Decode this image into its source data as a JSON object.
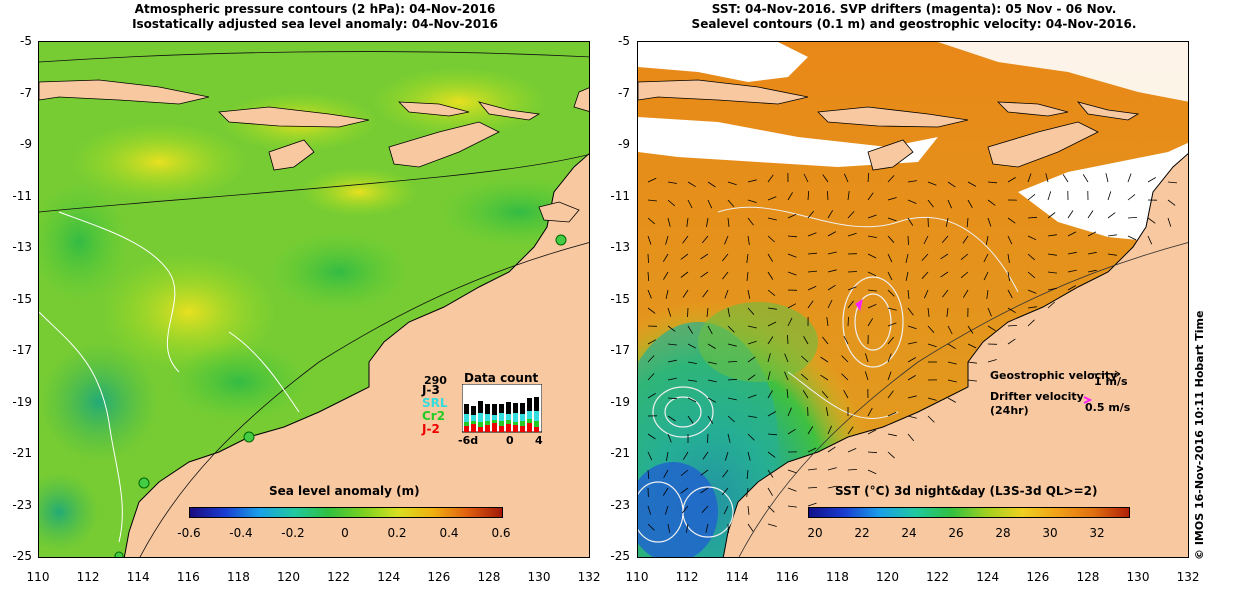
{
  "left_panel": {
    "title_line1": "Atmospheric pressure contours (2 hPa): 04-Nov-2016",
    "title_line2": "Isostatically adjusted sea level anomaly: 04-Nov-2016",
    "colorbar": {
      "title": "Sea level anomaly (m)",
      "ticks": [
        "-0.6",
        "-0.4",
        "-0.2",
        "0",
        "0.2",
        "0.4",
        "0.6"
      ]
    },
    "data_count": {
      "title": "Data count",
      "max_value": "290",
      "satellites": [
        {
          "label": "J-3",
          "color": "#000000"
        },
        {
          "label": "SRL",
          "color": "#33dddd"
        },
        {
          "label": "Cr2",
          "color": "#22cc22"
        },
        {
          "label": "J-2",
          "color": "#ee0000"
        }
      ],
      "x_ticks": [
        "-6d",
        "0",
        "4"
      ]
    }
  },
  "right_panel": {
    "title_line1": "SST: 04-Nov-2016. SVP drifters (magenta): 05 Nov - 06 Nov.",
    "title_line2": "Sealevel contours (0.1 m) and geostrophic velocity: 04-Nov-2016.",
    "legend": {
      "geostrophic_label": "Geostrophic velocity",
      "geostrophic_scale": "1 m/s",
      "drifter_label": "Drifter velocity",
      "drifter_sub": "(24hr)",
      "drifter_scale": "0.5 m/s"
    },
    "colorbar": {
      "title": "SST (°C) 3d night&day (L3S-3d QL>=2)",
      "ticks": [
        "20",
        "22",
        "24",
        "26",
        "28",
        "30",
        "32"
      ]
    },
    "credit": "© IMOS 16-Nov-2016 10:11 Hobart Time"
  },
  "axes": {
    "y_ticks": [
      "-5",
      "-7",
      "-9",
      "-11",
      "-13",
      "-15",
      "-17",
      "-19",
      "-21",
      "-23",
      "-25"
    ],
    "x_ticks": [
      "110",
      "112",
      "114",
      "116",
      "118",
      "120",
      "122",
      "124",
      "126",
      "128",
      "130",
      "132"
    ]
  },
  "colors": {
    "land": "#f8c8a0",
    "ocean_green": "#66cc33",
    "sst_orange": "#e88818",
    "cloud_white": "#ffffff"
  }
}
